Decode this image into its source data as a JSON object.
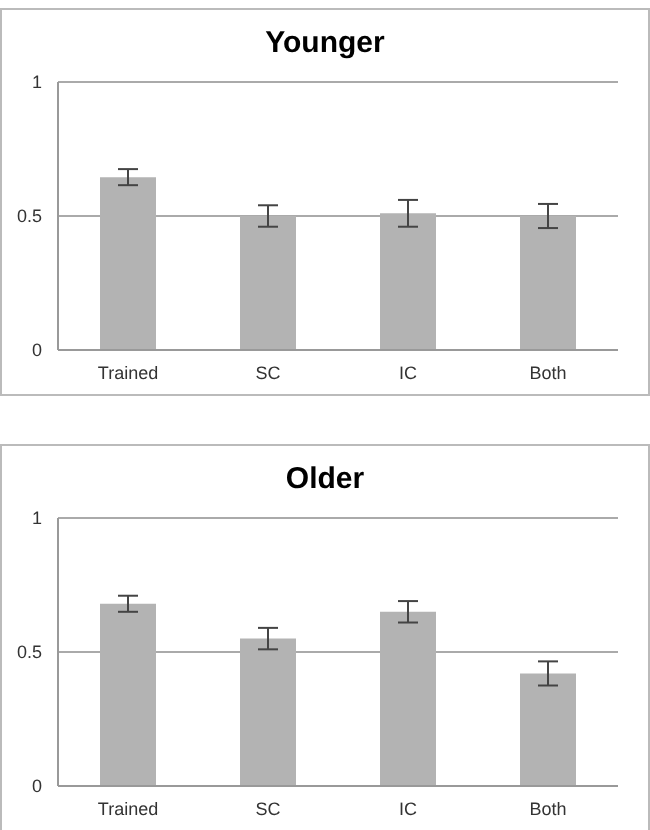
{
  "chart_data": [
    {
      "type": "bar",
      "title": "Younger",
      "categories": [
        "Trained",
        "SC",
        "IC",
        "Both"
      ],
      "values": [
        0.645,
        0.5,
        0.51,
        0.5
      ],
      "errors": [
        0.03,
        0.04,
        0.05,
        0.045
      ],
      "color": "#b3b3b3",
      "ylim": [
        0,
        1
      ],
      "yticks": [
        0,
        0.5,
        1
      ],
      "grid": "y",
      "legend": false
    },
    {
      "type": "bar",
      "title": "Older",
      "categories": [
        "Trained",
        "SC",
        "IC",
        "Both"
      ],
      "values": [
        0.68,
        0.55,
        0.65,
        0.42
      ],
      "errors": [
        0.03,
        0.04,
        0.04,
        0.045
      ],
      "color": "#b3b3b3",
      "ylim": [
        0,
        1
      ],
      "yticks": [
        0,
        0.5,
        1
      ],
      "grid": "y",
      "legend": false
    }
  ]
}
